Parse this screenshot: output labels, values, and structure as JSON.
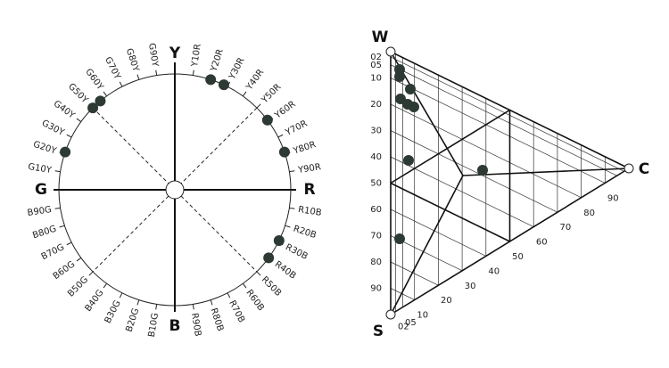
{
  "circle": {
    "poles": {
      "top": "Y",
      "right": "R",
      "bottom": "B",
      "left": "G"
    },
    "hues": [
      "Y10R",
      "Y20R",
      "Y30R",
      "Y40R",
      "Y50R",
      "Y60R",
      "Y70R",
      "Y80R",
      "Y90R",
      "R10B",
      "R20B",
      "R30B",
      "R40B",
      "R50B",
      "R60B",
      "R70B",
      "R80B",
      "R90B",
      "B10G",
      "B20G",
      "B30G",
      "B40G",
      "B50G",
      "B60G",
      "B70G",
      "B80G",
      "B90G",
      "G10Y",
      "G20Y",
      "G30Y",
      "G40Y",
      "G50Y",
      "G60Y",
      "G70Y",
      "G80Y",
      "G90Y"
    ]
  },
  "triangle": {
    "corners": {
      "white": "W",
      "black": "S",
      "chromatic": "C"
    },
    "blackness_scale": [
      "02",
      "05",
      "10",
      "20",
      "30",
      "40",
      "50",
      "60",
      "70",
      "80",
      "90"
    ],
    "chromaticness_scale": [
      "02",
      "05",
      "10",
      "20",
      "30",
      "40",
      "50",
      "60",
      "70",
      "80",
      "90"
    ]
  }
}
